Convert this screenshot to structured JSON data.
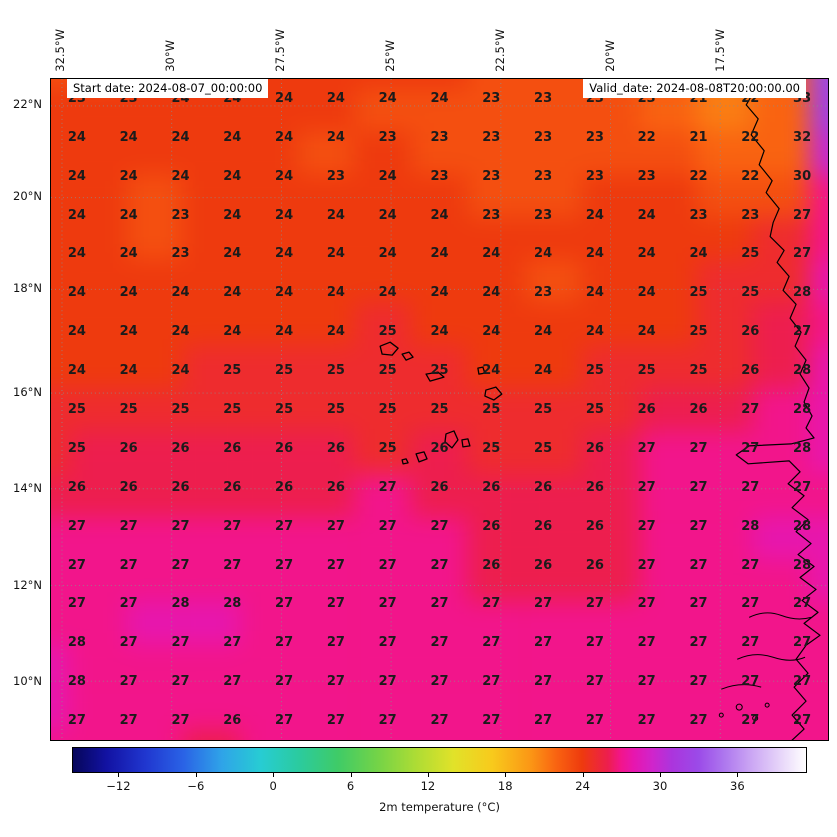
{
  "header": {
    "start_date": "Start date: 2024-08-07_00:00:00",
    "valid_date": "Valid_date: 2024-08-08T20:00:00.00"
  },
  "chart_data": {
    "type": "heatmap",
    "title": "",
    "xlabel": "",
    "ylabel": "",
    "lon_ticks": [
      "32.5°W",
      "30°W",
      "27.5°W",
      "25°W",
      "22.5°W",
      "20°W",
      "17.5°W"
    ],
    "lat_ticks": [
      "22°N",
      "20°N",
      "18°N",
      "16°N",
      "14°N",
      "12°N",
      "10°N"
    ],
    "grid_values": [
      [
        23,
        23,
        24,
        24,
        24,
        24,
        24,
        24,
        23,
        23,
        23,
        23,
        21,
        22,
        33
      ],
      [
        24,
        24,
        24,
        24,
        24,
        24,
        23,
        23,
        23,
        23,
        23,
        22,
        21,
        22,
        32
      ],
      [
        24,
        24,
        24,
        24,
        24,
        23,
        24,
        23,
        23,
        23,
        23,
        23,
        22,
        22,
        30
      ],
      [
        24,
        24,
        23,
        24,
        24,
        24,
        24,
        24,
        23,
        23,
        24,
        24,
        23,
        23,
        27
      ],
      [
        24,
        24,
        23,
        24,
        24,
        24,
        24,
        24,
        24,
        24,
        24,
        24,
        24,
        25,
        27
      ],
      [
        24,
        24,
        24,
        24,
        24,
        24,
        24,
        24,
        24,
        23,
        24,
        24,
        25,
        25,
        28
      ],
      [
        24,
        24,
        24,
        24,
        24,
        24,
        25,
        24,
        24,
        24,
        24,
        24,
        25,
        26,
        27
      ],
      [
        24,
        24,
        24,
        25,
        25,
        25,
        25,
        25,
        24,
        24,
        25,
        25,
        25,
        26,
        28
      ],
      [
        25,
        25,
        25,
        25,
        25,
        25,
        25,
        25,
        25,
        25,
        25,
        26,
        26,
        27,
        28
      ],
      [
        25,
        26,
        26,
        26,
        26,
        26,
        25,
        26,
        25,
        25,
        26,
        27,
        27,
        27,
        28
      ],
      [
        26,
        26,
        26,
        26,
        26,
        26,
        27,
        26,
        26,
        26,
        26,
        27,
        27,
        27,
        27
      ],
      [
        27,
        27,
        27,
        27,
        27,
        27,
        27,
        27,
        26,
        26,
        26,
        27,
        27,
        28,
        28
      ],
      [
        27,
        27,
        27,
        27,
        27,
        27,
        27,
        27,
        26,
        26,
        26,
        27,
        27,
        27,
        28
      ],
      [
        27,
        27,
        28,
        28,
        27,
        27,
        27,
        27,
        27,
        27,
        27,
        27,
        27,
        27,
        27
      ],
      [
        28,
        27,
        27,
        27,
        27,
        27,
        27,
        27,
        27,
        27,
        27,
        27,
        27,
        27,
        27
      ],
      [
        28,
        27,
        27,
        27,
        27,
        27,
        27,
        27,
        27,
        27,
        27,
        27,
        27,
        27,
        27
      ],
      [
        27,
        27,
        27,
        26,
        27,
        27,
        27,
        27,
        27,
        27,
        27,
        27,
        27,
        27,
        27
      ]
    ],
    "colorbar": {
      "label": "2m temperature (°C)",
      "ticks": [
        -12,
        -6,
        0,
        6,
        12,
        18,
        24,
        30,
        36
      ],
      "range": [
        -15.6,
        41.4
      ],
      "stops": [
        [
          -16,
          "#06065a"
        ],
        [
          -13,
          "#1212a2"
        ],
        [
          -10,
          "#2036cf"
        ],
        [
          -7,
          "#2a63e6"
        ],
        [
          -4,
          "#2fa4e8"
        ],
        [
          -1,
          "#27ccd3"
        ],
        [
          2,
          "#2bcb9e"
        ],
        [
          5,
          "#3fcb67"
        ],
        [
          8,
          "#72d348"
        ],
        [
          11,
          "#acdc35"
        ],
        [
          14,
          "#e1e229"
        ],
        [
          17,
          "#f8ca1c"
        ],
        [
          20,
          "#fb9615"
        ],
        [
          22,
          "#f96311"
        ],
        [
          24,
          "#ee3a0e"
        ],
        [
          26,
          "#ed1e4e"
        ],
        [
          27,
          "#f2158b"
        ],
        [
          28,
          "#e716ae"
        ],
        [
          29.5,
          "#cf25cc"
        ],
        [
          31,
          "#ab35dd"
        ],
        [
          33,
          "#9b4ae8"
        ],
        [
          35,
          "#ad76ee"
        ],
        [
          37,
          "#c9a3f3"
        ],
        [
          39.5,
          "#e8d7fa"
        ],
        [
          42,
          "#ffffff"
        ]
      ]
    }
  }
}
